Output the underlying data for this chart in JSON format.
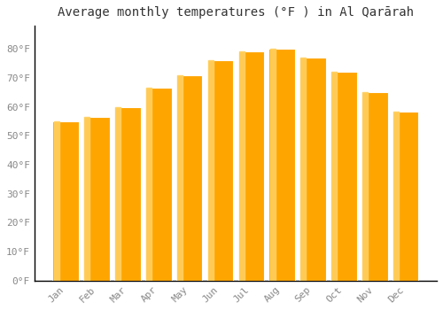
{
  "title": "Average monthly temperatures (°F ) in Al Qarārah",
  "months": [
    "Jan",
    "Feb",
    "Mar",
    "Apr",
    "May",
    "Jun",
    "Jul",
    "Aug",
    "Sep",
    "Oct",
    "Nov",
    "Dec"
  ],
  "values": [
    55.0,
    56.5,
    60.0,
    66.5,
    71.0,
    76.0,
    79.0,
    80.0,
    77.0,
    72.0,
    65.0,
    58.5
  ],
  "bar_color_main": "#FFA500",
  "bar_color_light": "#FFD060",
  "ylim": [
    0,
    88
  ],
  "ytick_values": [
    0,
    10,
    20,
    30,
    40,
    50,
    60,
    70,
    80
  ],
  "ytick_labels": [
    "0°F",
    "10°F",
    "20°F",
    "30°F",
    "40°F",
    "50°F",
    "60°F",
    "70°F",
    "80°F"
  ],
  "background_color": "#FFFFFF",
  "grid_color": "#FFFFFF",
  "title_fontsize": 10,
  "tick_fontsize": 8,
  "bar_width": 0.85,
  "spine_color": "#000000",
  "tick_color": "#888888"
}
